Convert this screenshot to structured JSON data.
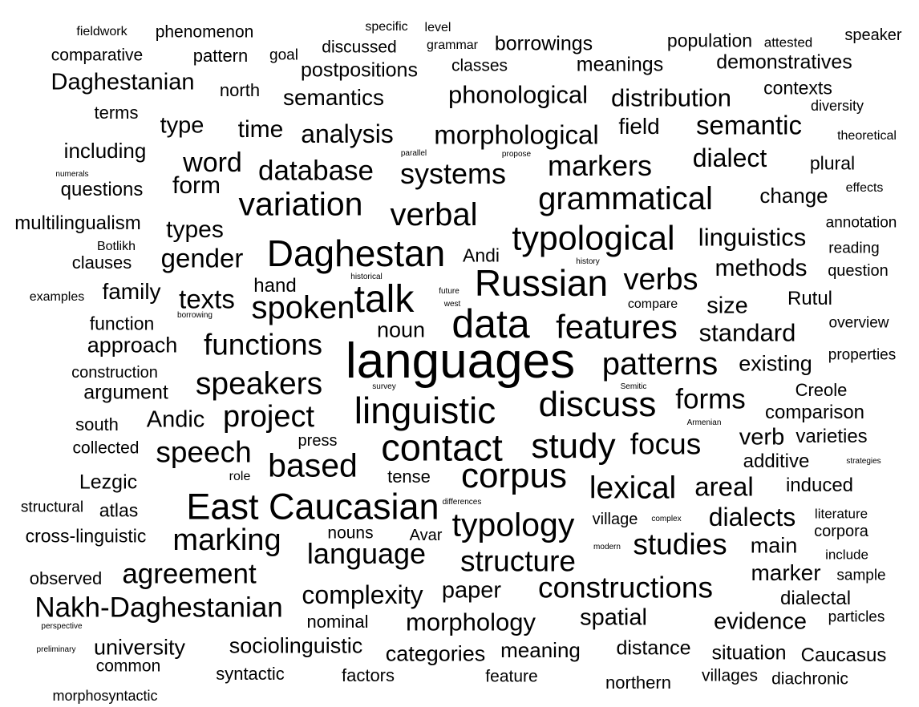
{
  "word_cloud": {
    "text_color": "#000000",
    "background_color": "#ffffff",
    "words": [
      {
        "text": "fieldwork",
        "weight": 16
      },
      {
        "text": "phenomenon",
        "weight": 21
      },
      {
        "text": "specific",
        "weight": 16
      },
      {
        "text": "level",
        "weight": 16
      },
      {
        "text": "speaker",
        "weight": 20
      },
      {
        "text": "comparative",
        "weight": 21
      },
      {
        "text": "pattern",
        "weight": 22
      },
      {
        "text": "goal",
        "weight": 19
      },
      {
        "text": "discussed",
        "weight": 21
      },
      {
        "text": "grammar",
        "weight": 16
      },
      {
        "text": "borrowings",
        "weight": 25
      },
      {
        "text": "population",
        "weight": 23
      },
      {
        "text": "attested",
        "weight": 17
      },
      {
        "text": "classes",
        "weight": 21
      },
      {
        "text": "meanings",
        "weight": 25
      },
      {
        "text": "demonstratives",
        "weight": 25
      },
      {
        "text": "Daghestanian",
        "weight": 29
      },
      {
        "text": "north",
        "weight": 22
      },
      {
        "text": "postpositions",
        "weight": 25
      },
      {
        "text": "semantics",
        "weight": 28
      },
      {
        "text": "phonological",
        "weight": 31
      },
      {
        "text": "distribution",
        "weight": 31
      },
      {
        "text": "contexts",
        "weight": 23
      },
      {
        "text": "diversity",
        "weight": 18
      },
      {
        "text": "terms",
        "weight": 22
      },
      {
        "text": "type",
        "weight": 29
      },
      {
        "text": "time",
        "weight": 30
      },
      {
        "text": "analysis",
        "weight": 32
      },
      {
        "text": "morphological",
        "weight": 33
      },
      {
        "text": "field",
        "weight": 28
      },
      {
        "text": "semantic",
        "weight": 33
      },
      {
        "text": "theoretical",
        "weight": 16
      },
      {
        "text": "including",
        "weight": 26
      },
      {
        "text": "parallel",
        "weight": 10
      },
      {
        "text": "propose",
        "weight": 10
      },
      {
        "text": "word",
        "weight": 34
      },
      {
        "text": "database",
        "weight": 35
      },
      {
        "text": "markers",
        "weight": 36
      },
      {
        "text": "dialect",
        "weight": 32
      },
      {
        "text": "plural",
        "weight": 23
      },
      {
        "text": "numerals",
        "weight": 10
      },
      {
        "text": "form",
        "weight": 30
      },
      {
        "text": "systems",
        "weight": 36
      },
      {
        "text": "questions",
        "weight": 24
      },
      {
        "text": "variation",
        "weight": 41
      },
      {
        "text": "grammatical",
        "weight": 40
      },
      {
        "text": "change",
        "weight": 26
      },
      {
        "text": "effects",
        "weight": 16
      },
      {
        "text": "verbal",
        "weight": 40
      },
      {
        "text": "multilingualism",
        "weight": 24
      },
      {
        "text": "types",
        "weight": 30
      },
      {
        "text": "annotation",
        "weight": 19
      },
      {
        "text": "typological",
        "weight": 43
      },
      {
        "text": "linguistics",
        "weight": 31
      },
      {
        "text": "Botlikh",
        "weight": 16
      },
      {
        "text": "reading",
        "weight": 19
      },
      {
        "text": "Daghestan",
        "weight": 46
      },
      {
        "text": "gender",
        "weight": 33
      },
      {
        "text": "clauses",
        "weight": 22
      },
      {
        "text": "Andi",
        "weight": 23
      },
      {
        "text": "history",
        "weight": 10
      },
      {
        "text": "methods",
        "weight": 30
      },
      {
        "text": "question",
        "weight": 20
      },
      {
        "text": "historical",
        "weight": 10
      },
      {
        "text": "Russian",
        "weight": 46
      },
      {
        "text": "verbs",
        "weight": 38
      },
      {
        "text": "hand",
        "weight": 24
      },
      {
        "text": "family",
        "weight": 28
      },
      {
        "text": "future",
        "weight": 10
      },
      {
        "text": "examples",
        "weight": 16
      },
      {
        "text": "texts",
        "weight": 33
      },
      {
        "text": "talk",
        "weight": 48
      },
      {
        "text": "borrowing",
        "weight": 10
      },
      {
        "text": "west",
        "weight": 10
      },
      {
        "text": "compare",
        "weight": 16
      },
      {
        "text": "size",
        "weight": 29
      },
      {
        "text": "Rutul",
        "weight": 24
      },
      {
        "text": "spoken",
        "weight": 40
      },
      {
        "text": "data",
        "weight": 50
      },
      {
        "text": "function",
        "weight": 23
      },
      {
        "text": "features",
        "weight": 42
      },
      {
        "text": "overview",
        "weight": 19
      },
      {
        "text": "noun",
        "weight": 27
      },
      {
        "text": "standard",
        "weight": 31
      },
      {
        "text": "approach",
        "weight": 27
      },
      {
        "text": "functions",
        "weight": 37
      },
      {
        "text": "languages",
        "weight": 62
      },
      {
        "text": "properties",
        "weight": 19
      },
      {
        "text": "patterns",
        "weight": 40
      },
      {
        "text": "existing",
        "weight": 27
      },
      {
        "text": "construction",
        "weight": 20
      },
      {
        "text": "speakers",
        "weight": 39
      },
      {
        "text": "survey",
        "weight": 10
      },
      {
        "text": "Semitic",
        "weight": 10
      },
      {
        "text": "Creole",
        "weight": 22
      },
      {
        "text": "argument",
        "weight": 25
      },
      {
        "text": "forms",
        "weight": 35
      },
      {
        "text": "linguistic",
        "weight": 46
      },
      {
        "text": "discuss",
        "weight": 44
      },
      {
        "text": "comparison",
        "weight": 24
      },
      {
        "text": "south",
        "weight": 22
      },
      {
        "text": "Andic",
        "weight": 29
      },
      {
        "text": "project",
        "weight": 38
      },
      {
        "text": "Armenian",
        "weight": 10
      },
      {
        "text": "verb",
        "weight": 29
      },
      {
        "text": "varieties",
        "weight": 24
      },
      {
        "text": "collected",
        "weight": 21
      },
      {
        "text": "press",
        "weight": 20
      },
      {
        "text": "speech",
        "weight": 37
      },
      {
        "text": "contact",
        "weight": 47
      },
      {
        "text": "study",
        "weight": 44
      },
      {
        "text": "focus",
        "weight": 37
      },
      {
        "text": "additive",
        "weight": 24
      },
      {
        "text": "strategies",
        "weight": 10
      },
      {
        "text": "based",
        "weight": 41
      },
      {
        "text": "corpus",
        "weight": 44
      },
      {
        "text": "Lezgic",
        "weight": 25
      },
      {
        "text": "role",
        "weight": 16
      },
      {
        "text": "tense",
        "weight": 22
      },
      {
        "text": "lexical",
        "weight": 39
      },
      {
        "text": "areal",
        "weight": 33
      },
      {
        "text": "induced",
        "weight": 24
      },
      {
        "text": "differences",
        "weight": 10
      },
      {
        "text": "structural",
        "weight": 19
      },
      {
        "text": "atlas",
        "weight": 23
      },
      {
        "text": "East Caucasian",
        "weight": 45
      },
      {
        "text": "typology",
        "weight": 41
      },
      {
        "text": "village",
        "weight": 20
      },
      {
        "text": "complex",
        "weight": 10
      },
      {
        "text": "dialects",
        "weight": 32
      },
      {
        "text": "literature",
        "weight": 17
      },
      {
        "text": "cross-linguistic",
        "weight": 23
      },
      {
        "text": "marking",
        "weight": 38
      },
      {
        "text": "nouns",
        "weight": 21
      },
      {
        "text": "Avar",
        "weight": 20
      },
      {
        "text": "corpora",
        "weight": 20
      },
      {
        "text": "modern",
        "weight": 10
      },
      {
        "text": "studies",
        "weight": 37
      },
      {
        "text": "main",
        "weight": 27
      },
      {
        "text": "language",
        "weight": 36
      },
      {
        "text": "structure",
        "weight": 37
      },
      {
        "text": "include",
        "weight": 17
      },
      {
        "text": "observed",
        "weight": 22
      },
      {
        "text": "agreement",
        "weight": 35
      },
      {
        "text": "marker",
        "weight": 28
      },
      {
        "text": "sample",
        "weight": 19
      },
      {
        "text": "Nakh-Daghestanian",
        "weight": 35
      },
      {
        "text": "complexity",
        "weight": 32
      },
      {
        "text": "paper",
        "weight": 29
      },
      {
        "text": "constructions",
        "weight": 37
      },
      {
        "text": "dialectal",
        "weight": 24
      },
      {
        "text": "perspective",
        "weight": 10
      },
      {
        "text": "nominal",
        "weight": 22
      },
      {
        "text": "morphology",
        "weight": 31
      },
      {
        "text": "spatial",
        "weight": 29
      },
      {
        "text": "evidence",
        "weight": 29
      },
      {
        "text": "particles",
        "weight": 19
      },
      {
        "text": "preliminary",
        "weight": 10
      },
      {
        "text": "university",
        "weight": 27
      },
      {
        "text": "sociolinguistic",
        "weight": 27
      },
      {
        "text": "categories",
        "weight": 27
      },
      {
        "text": "meaning",
        "weight": 26
      },
      {
        "text": "distance",
        "weight": 25
      },
      {
        "text": "situation",
        "weight": 25
      },
      {
        "text": "Caucasus",
        "weight": 24
      },
      {
        "text": "common",
        "weight": 21
      },
      {
        "text": "syntactic",
        "weight": 22
      },
      {
        "text": "factors",
        "weight": 22
      },
      {
        "text": "feature",
        "weight": 21
      },
      {
        "text": "villages",
        "weight": 21
      },
      {
        "text": "diachronic",
        "weight": 21
      },
      {
        "text": "northern",
        "weight": 22
      },
      {
        "text": "morphosyntactic",
        "weight": 18
      }
    ]
  }
}
